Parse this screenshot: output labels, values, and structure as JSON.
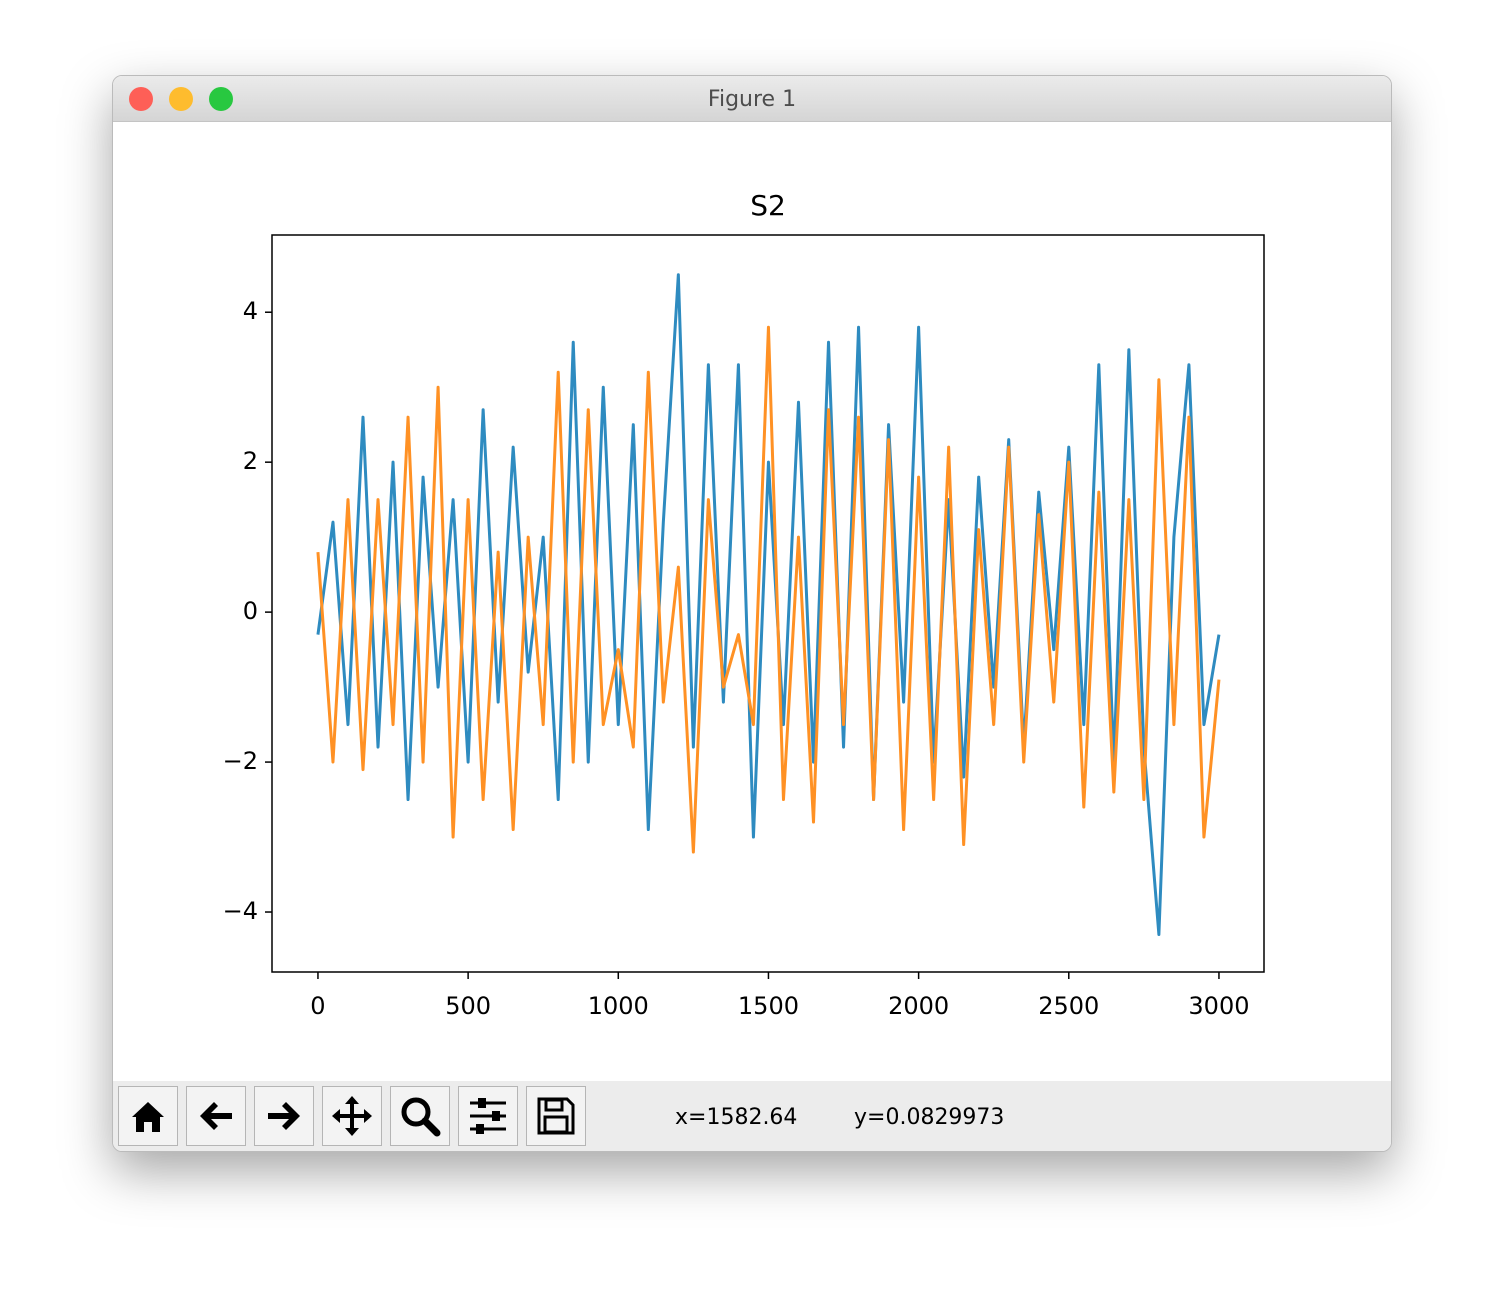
{
  "window": {
    "title": "Figure 1"
  },
  "chart_data": {
    "type": "line",
    "title": "S2",
    "x": [
      0,
      50,
      100,
      150,
      200,
      250,
      300,
      350,
      400,
      450,
      500,
      550,
      600,
      650,
      700,
      750,
      800,
      850,
      900,
      950,
      1000,
      1050,
      1100,
      1150,
      1200,
      1250,
      1300,
      1350,
      1400,
      1450,
      1500,
      1550,
      1600,
      1650,
      1700,
      1750,
      1800,
      1850,
      1900,
      1950,
      2000,
      2050,
      2100,
      2150,
      2200,
      2250,
      2300,
      2350,
      2400,
      2450,
      2500,
      2550,
      2600,
      2650,
      2700,
      2750,
      2800,
      2850,
      2900,
      2950,
      3000
    ],
    "series": [
      {
        "color": "#2e8bc0",
        "values": [
          -0.3,
          1.2,
          -1.5,
          2.6,
          -1.8,
          2.0,
          -2.5,
          1.8,
          -1.0,
          1.5,
          -2.0,
          2.7,
          -1.2,
          2.2,
          -0.8,
          1.0,
          -2.5,
          3.6,
          -2.0,
          3.0,
          -1.5,
          2.5,
          -2.9,
          1.2,
          4.5,
          -1.8,
          3.3,
          -1.2,
          3.3,
          -3.0,
          2.0,
          -1.5,
          2.8,
          -2.0,
          3.6,
          -1.8,
          3.8,
          -2.5,
          2.5,
          -1.2,
          3.8,
          -2.0,
          1.5,
          -2.2,
          1.8,
          -1.0,
          2.3,
          -1.8,
          1.6,
          -0.5,
          2.2,
          -1.5,
          3.3,
          -2.0,
          3.5,
          -1.8,
          -4.3,
          1.0,
          3.3,
          -1.5,
          -0.3
        ]
      },
      {
        "color": "#ff9124",
        "values": [
          0.8,
          -2.0,
          1.5,
          -2.1,
          1.5,
          -1.5,
          2.6,
          -2.0,
          3.0,
          -3.0,
          1.5,
          -2.5,
          0.8,
          -2.9,
          1.0,
          -1.5,
          3.2,
          -2.0,
          2.7,
          -1.5,
          -0.5,
          -1.8,
          3.2,
          -1.2,
          0.6,
          -3.2,
          1.5,
          -1.0,
          -0.3,
          -1.5,
          3.8,
          -2.5,
          1.0,
          -2.8,
          2.7,
          -1.5,
          2.6,
          -2.5,
          2.3,
          -2.9,
          1.8,
          -2.5,
          2.2,
          -3.1,
          1.1,
          -1.5,
          2.2,
          -2.0,
          1.3,
          -1.2,
          2.0,
          -2.6,
          1.6,
          -2.4,
          1.5,
          -2.5,
          3.1,
          -1.5,
          2.6,
          -3.0,
          -0.9
        ]
      }
    ],
    "xlim": [
      -153,
      3150
    ],
    "ylim": [
      -4.8,
      5.03
    ],
    "xticks": [
      0,
      500,
      1000,
      1500,
      2000,
      2500,
      3000
    ],
    "yticks": [
      {
        "value": -4,
        "label": "−4"
      },
      {
        "value": -2,
        "label": "−2"
      },
      0,
      2,
      4
    ]
  },
  "status": {
    "x": "x=1582.64",
    "y": "y=0.0829973"
  }
}
